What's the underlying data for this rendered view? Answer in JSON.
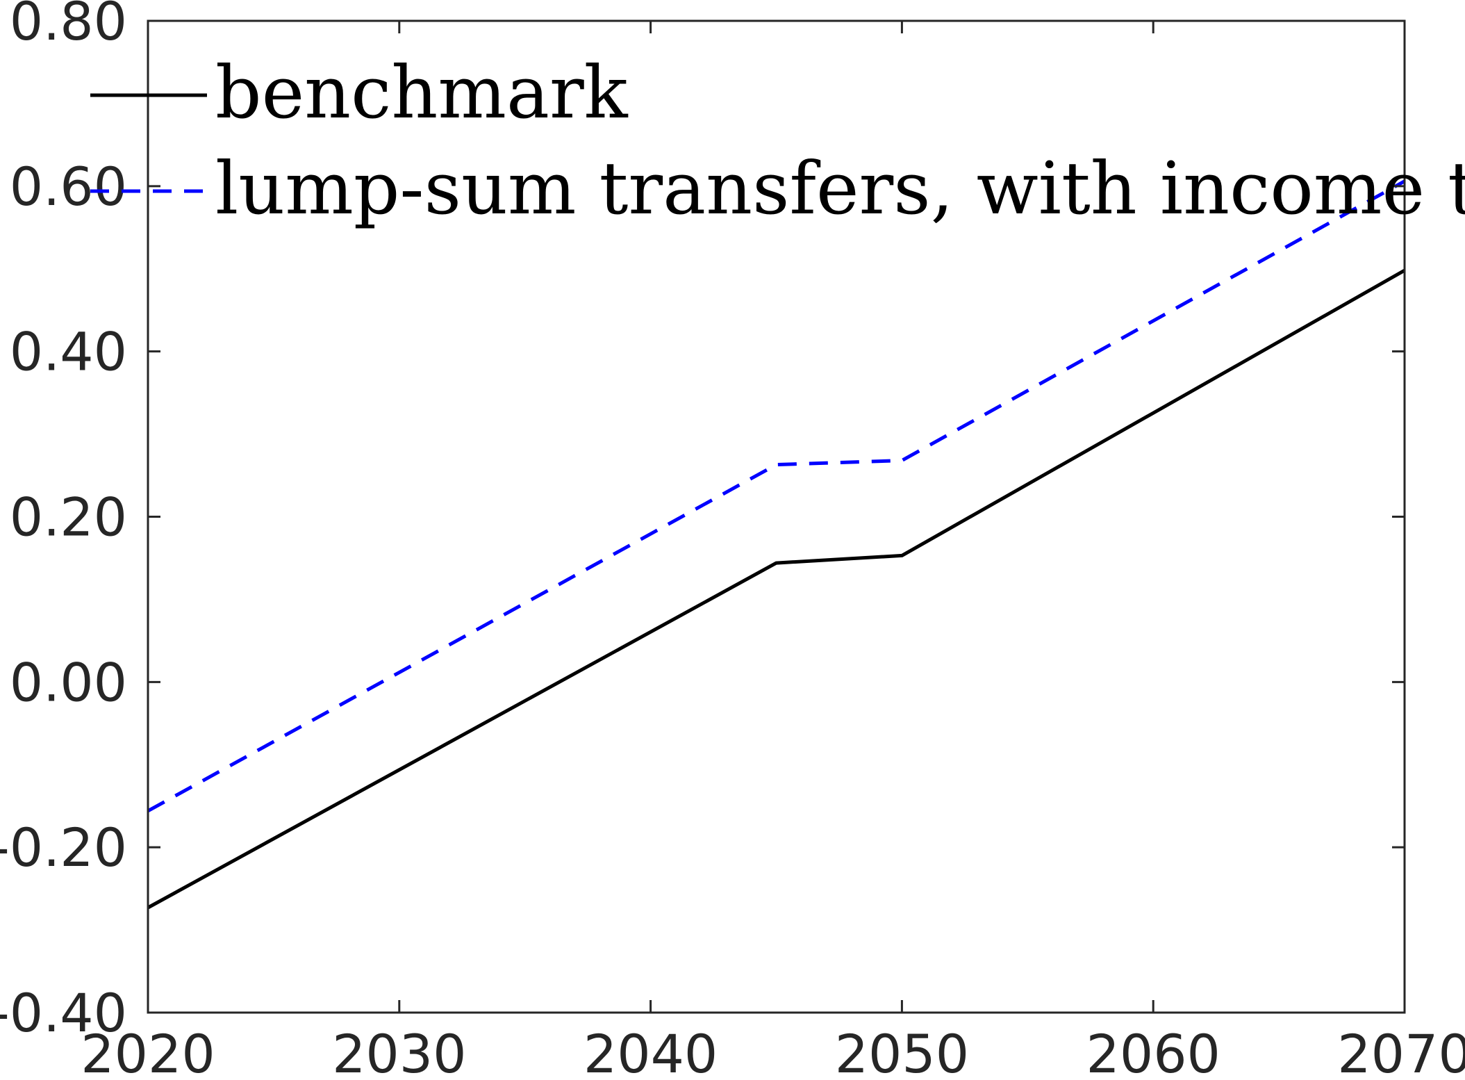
{
  "chart_data": {
    "type": "line",
    "title": "",
    "xlabel": "",
    "ylabel": "",
    "xlim": [
      2020,
      2070
    ],
    "ylim": [
      -0.4,
      0.8
    ],
    "x_ticks": [
      "2020",
      "2030",
      "2040",
      "2050",
      "2060",
      "2070"
    ],
    "y_ticks": [
      "-0.40",
      "-0.20",
      "0.00",
      "0.20",
      "0.40",
      "0.60",
      "0.80"
    ],
    "grid": false,
    "legend_position": "top-left",
    "series": [
      {
        "name": "benchmark",
        "style": "solid",
        "color": "#000000",
        "x": [
          2020,
          2045,
          2050,
          2070
        ],
        "y": [
          -0.273,
          0.144,
          0.153,
          0.498
        ]
      },
      {
        "name": "lump-sum transfers, with income tax",
        "style": "dashed",
        "color": "#0000ff",
        "x": [
          2020,
          2045,
          2050,
          2070
        ],
        "y": [
          -0.156,
          0.263,
          0.268,
          0.606
        ]
      }
    ]
  }
}
